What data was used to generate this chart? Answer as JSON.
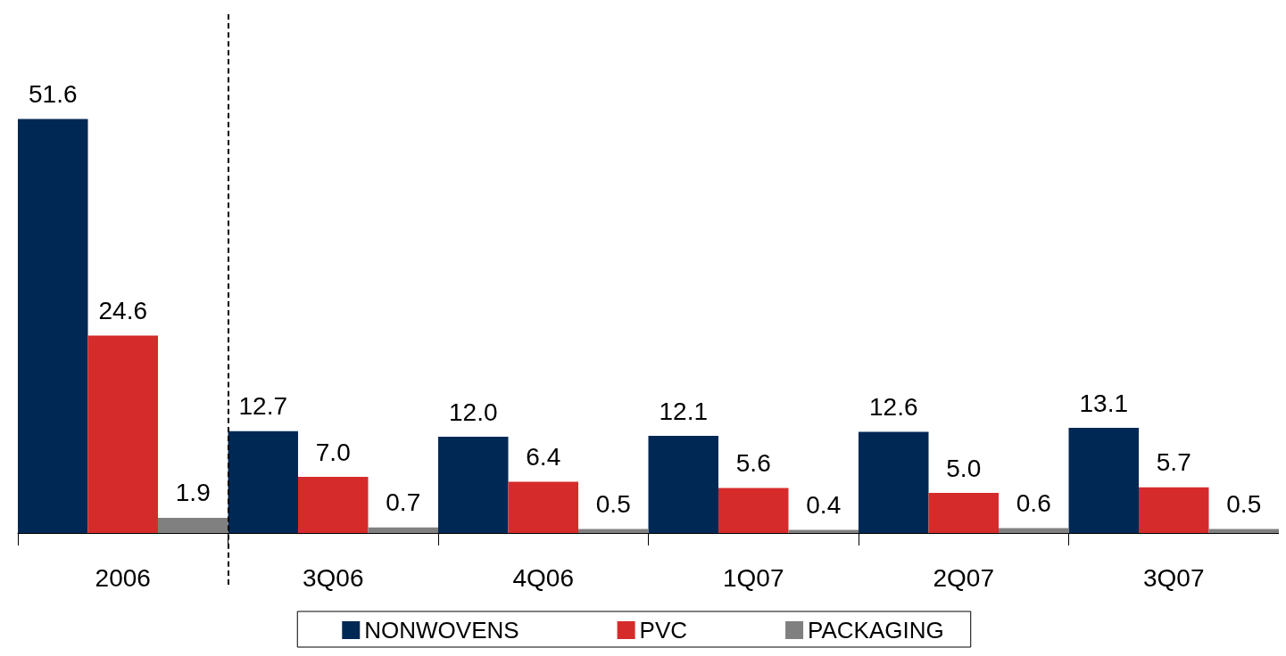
{
  "chart_data": {
    "type": "bar",
    "categories": [
      "2006",
      "3Q06",
      "4Q06",
      "1Q07",
      "2Q07",
      "3Q07"
    ],
    "series": [
      {
        "name": "NONWOVENS",
        "color": "#002855",
        "values": [
          51.6,
          12.7,
          12.0,
          12.1,
          12.6,
          13.1
        ],
        "value_labels": [
          "51.6",
          "12.7",
          "12.0",
          "12.1",
          "12.6",
          "13.1"
        ]
      },
      {
        "name": "PVC",
        "color": "#d62b2b",
        "values": [
          24.6,
          7.0,
          6.4,
          5.6,
          5.0,
          5.7
        ],
        "value_labels": [
          "24.6",
          "7.0",
          "6.4",
          "5.6",
          "5.0",
          "5.7"
        ]
      },
      {
        "name": "PACKAGING",
        "color": "#808080",
        "values": [
          1.9,
          0.7,
          0.5,
          0.4,
          0.6,
          0.5
        ],
        "value_labels": [
          "1.9",
          "0.7",
          "0.5",
          "0.4",
          "0.6",
          "0.5"
        ]
      }
    ],
    "legend": "bottom",
    "grid": false
  }
}
